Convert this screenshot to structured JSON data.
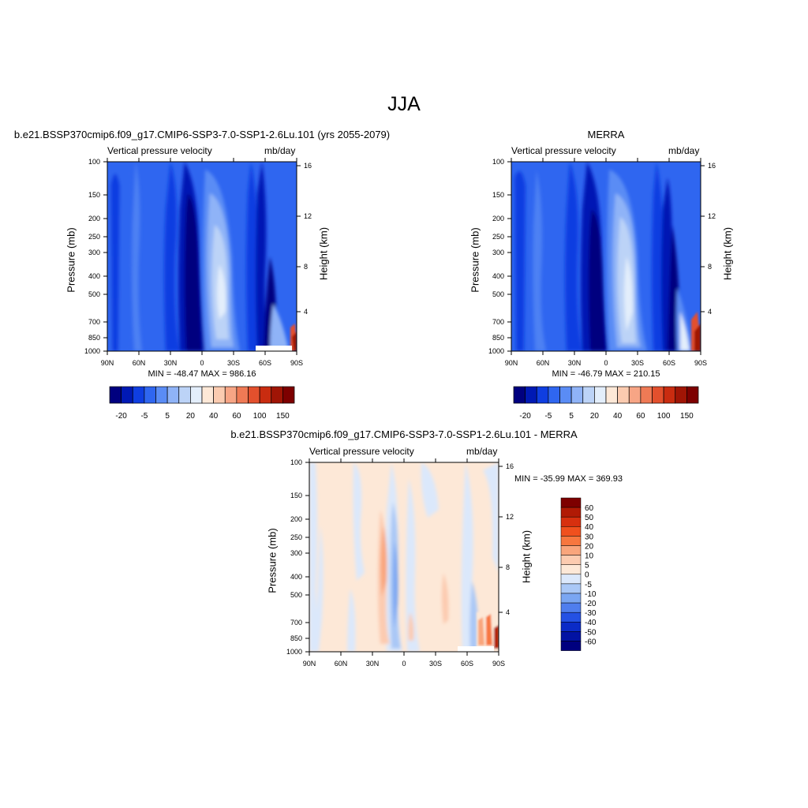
{
  "figure": {
    "title": "JJA"
  },
  "panels": [
    {
      "title": "b.e21.BSSP370cmip6.f09_g17.CMIP6-SSP3-7.0-SSP1-2.6Lu.101 (yrs 2055-2079)",
      "left_label": "Vertical pressure velocity",
      "right_label": "mb/day",
      "min_max": "MIN = -48.47  MAX = 986.16",
      "ylabel": "Pressure (mb)",
      "ylabel_right": "Height (km)"
    },
    {
      "title": "MERRA",
      "left_label": "Vertical pressure velocity",
      "right_label": "mb/day",
      "min_max": "MIN = -46.79  MAX = 210.15",
      "ylabel": "Pressure (mb)",
      "ylabel_right": "Height (km)"
    },
    {
      "title": "b.e21.BSSP370cmip6.f09_g17.CMIP6-SSP3-7.0-SSP1-2.6Lu.101 - MERRA",
      "left_label": "Vertical pressure velocity",
      "right_label": "mb/day",
      "min_max": "MIN = -35.99  MAX = 369.93",
      "ylabel": "Pressure (mb)",
      "ylabel_right": "Height (km)"
    }
  ],
  "chart_data": [
    {
      "type": "heatmap",
      "x_ticks": [
        "90N",
        "60N",
        "30N",
        "0",
        "30S",
        "60S",
        "90S"
      ],
      "y_ticks": [
        "100",
        "150",
        "200",
        "250",
        "300",
        "400",
        "500",
        "700",
        "850",
        "1000"
      ],
      "y2_ticks": [
        "16",
        "12",
        "8",
        "4"
      ],
      "colorbar": {
        "orientation": "horizontal",
        "labels": [
          "-20",
          "-5",
          "5",
          "20",
          "40",
          "60",
          "100",
          "150"
        ],
        "colors": [
          "#00007f",
          "#0019b4",
          "#0f3ee1",
          "#2f66f0",
          "#5a8cf5",
          "#8fb3f7",
          "#bcd3f7",
          "#e3eefb",
          "#fde8d7",
          "#fbcbb0",
          "#f7a585",
          "#ef7a55",
          "#e3502d",
          "#c92c10",
          "#a01505",
          "#7d0000"
        ]
      }
    },
    {
      "type": "heatmap",
      "x_ticks": [
        "90N",
        "60N",
        "30N",
        "0",
        "30S",
        "60S",
        "90S"
      ],
      "y_ticks": [
        "100",
        "150",
        "200",
        "250",
        "300",
        "400",
        "500",
        "700",
        "850",
        "1000"
      ],
      "y2_ticks": [
        "16",
        "12",
        "8",
        "4"
      ],
      "colorbar": {
        "orientation": "horizontal",
        "labels": [
          "-20",
          "-5",
          "5",
          "20",
          "40",
          "60",
          "100",
          "150"
        ],
        "colors": [
          "#00007f",
          "#0019b4",
          "#0f3ee1",
          "#2f66f0",
          "#5a8cf5",
          "#8fb3f7",
          "#bcd3f7",
          "#e3eefb",
          "#fde8d7",
          "#fbcbb0",
          "#f7a585",
          "#ef7a55",
          "#e3502d",
          "#c92c10",
          "#a01505",
          "#7d0000"
        ]
      }
    },
    {
      "type": "heatmap",
      "x_ticks": [
        "90N",
        "60N",
        "30N",
        "0",
        "30S",
        "60S",
        "90S"
      ],
      "y_ticks": [
        "100",
        "150",
        "200",
        "250",
        "300",
        "400",
        "500",
        "700",
        "850",
        "1000"
      ],
      "y2_ticks": [
        "16",
        "12",
        "8",
        "4"
      ],
      "colorbar": {
        "orientation": "vertical",
        "labels": [
          "60",
          "50",
          "40",
          "30",
          "20",
          "10",
          "5",
          "0",
          "-5",
          "-10",
          "-20",
          "-30",
          "-40",
          "-50",
          "-60"
        ],
        "colors": [
          "#7d0000",
          "#b11a05",
          "#d7300f",
          "#f0501e",
          "#f7773f",
          "#f9a57c",
          "#fccbb0",
          "#fde8d7",
          "#dbe8fb",
          "#aac8f6",
          "#7aa6f2",
          "#4f7eee",
          "#2451e4",
          "#0b2bc7",
          "#0212a3",
          "#00007f"
        ]
      }
    }
  ],
  "colors": {
    "field_base_blue": "#2f66f0",
    "diff_base_peach": "#fde8d7",
    "diff_base_lightblue": "#dbe8fb"
  }
}
